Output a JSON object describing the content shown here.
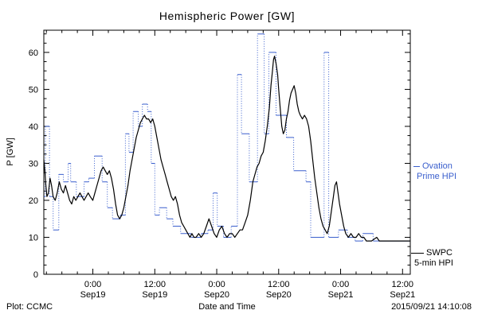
{
  "header": {
    "title": "Hemispheric Power [GW]"
  },
  "footer": {
    "plot_credit": "Plot: CCMC",
    "timestamp": "2015/09/21 14:10:08"
  },
  "legend": {
    "ovation": {
      "line1": "Ovation",
      "line2": "Prime HPI",
      "color": "#3a5fcd"
    },
    "swpc": {
      "line1": "SWPC",
      "line2": "5-min HPI",
      "color": "#000000"
    }
  },
  "chart_data": {
    "type": "line",
    "title": "Hemispheric Power [GW]",
    "xlabel": "Date and Time",
    "ylabel": "P [GW]",
    "x_unit": "hours since 2015-09-18 00:00 UT",
    "xlim": [
      14.5,
      85.5
    ],
    "ylim": [
      0,
      66
    ],
    "y_ticks": [
      0,
      10,
      20,
      30,
      40,
      50,
      60
    ],
    "y_minor_step": 2.5,
    "x_minor_step_hours": 3,
    "grid": false,
    "x_ticks": [
      {
        "t": 24,
        "time": "0:00",
        "date": "Sep19"
      },
      {
        "t": 36,
        "time": "12:00",
        "date": "Sep19"
      },
      {
        "t": 48,
        "time": "0:00",
        "date": "Sep20"
      },
      {
        "t": 60,
        "time": "12:00",
        "date": "Sep20"
      },
      {
        "t": 72,
        "time": "0:00",
        "date": "Sep21"
      },
      {
        "t": 84,
        "time": "12:00",
        "date": "Sep21"
      }
    ],
    "series": [
      {
        "name": "Ovation Prime HPI",
        "style": "step-dotted-verticals",
        "color": "#3a5fcd",
        "points": [
          [
            14.5,
            21
          ],
          [
            14.8,
            40
          ],
          [
            15.6,
            21
          ],
          [
            16.3,
            12
          ],
          [
            17.4,
            27
          ],
          [
            18.3,
            25
          ],
          [
            19.2,
            30
          ],
          [
            19.7,
            25
          ],
          [
            20.8,
            21
          ],
          [
            22.3,
            25
          ],
          [
            23.2,
            26
          ],
          [
            24.3,
            32
          ],
          [
            25.8,
            25
          ],
          [
            26.8,
            18
          ],
          [
            27.8,
            15
          ],
          [
            29.3,
            16
          ],
          [
            30.3,
            38
          ],
          [
            31.0,
            33
          ],
          [
            31.8,
            44
          ],
          [
            32.8,
            40
          ],
          [
            33.6,
            46
          ],
          [
            34.6,
            44
          ],
          [
            35.3,
            30
          ],
          [
            36.0,
            16
          ],
          [
            36.9,
            18
          ],
          [
            38.3,
            15
          ],
          [
            39.5,
            13
          ],
          [
            41.0,
            11
          ],
          [
            43.0,
            10
          ],
          [
            45.0,
            11
          ],
          [
            46.3,
            12
          ],
          [
            47.3,
            22
          ],
          [
            48.1,
            13
          ],
          [
            49.3,
            10
          ],
          [
            50.8,
            13
          ],
          [
            52.0,
            54
          ],
          [
            52.8,
            38
          ],
          [
            54.3,
            25
          ],
          [
            55.9,
            65
          ],
          [
            57.2,
            38
          ],
          [
            58.1,
            60
          ],
          [
            59.5,
            43
          ],
          [
            61.5,
            37
          ],
          [
            62.9,
            28
          ],
          [
            65.3,
            25
          ],
          [
            66.2,
            10
          ],
          [
            68.8,
            60
          ],
          [
            69.7,
            10
          ],
          [
            71.6,
            12
          ],
          [
            73.3,
            10
          ],
          [
            74.8,
            9
          ],
          [
            76.3,
            11
          ],
          [
            78.3,
            9
          ],
          [
            85.5,
            9
          ]
        ]
      },
      {
        "name": "SWPC 5-min HPI",
        "style": "solid-line",
        "color": "#000000",
        "points": [
          [
            14.5,
            31
          ],
          [
            14.7,
            28
          ],
          [
            14.9,
            24
          ],
          [
            15.1,
            21
          ],
          [
            15.4,
            22
          ],
          [
            15.7,
            26
          ],
          [
            16.0,
            24
          ],
          [
            16.3,
            21
          ],
          [
            16.7,
            20
          ],
          [
            17.1,
            22
          ],
          [
            17.5,
            25
          ],
          [
            17.9,
            23
          ],
          [
            18.3,
            22
          ],
          [
            18.7,
            24
          ],
          [
            19.1,
            22
          ],
          [
            19.5,
            20
          ],
          [
            19.9,
            19
          ],
          [
            20.3,
            21
          ],
          [
            20.7,
            20
          ],
          [
            21.1,
            21
          ],
          [
            21.5,
            22
          ],
          [
            21.9,
            21
          ],
          [
            22.3,
            20
          ],
          [
            22.7,
            21
          ],
          [
            23.1,
            22
          ],
          [
            23.5,
            21
          ],
          [
            24.0,
            20
          ],
          [
            24.4,
            22
          ],
          [
            24.8,
            24
          ],
          [
            25.2,
            26
          ],
          [
            25.6,
            28
          ],
          [
            26.0,
            29
          ],
          [
            26.4,
            28
          ],
          [
            26.8,
            27
          ],
          [
            27.2,
            28
          ],
          [
            27.6,
            26
          ],
          [
            28.0,
            23
          ],
          [
            28.4,
            19
          ],
          [
            28.8,
            16
          ],
          [
            29.2,
            15
          ],
          [
            29.6,
            16
          ],
          [
            30.0,
            18
          ],
          [
            30.4,
            21
          ],
          [
            30.8,
            24
          ],
          [
            31.2,
            28
          ],
          [
            31.6,
            31
          ],
          [
            32.0,
            34
          ],
          [
            32.4,
            37
          ],
          [
            32.8,
            39
          ],
          [
            33.2,
            41
          ],
          [
            33.6,
            42
          ],
          [
            34.0,
            43
          ],
          [
            34.4,
            42
          ],
          [
            34.8,
            42
          ],
          [
            35.2,
            41
          ],
          [
            35.6,
            42
          ],
          [
            36.0,
            40
          ],
          [
            36.4,
            37
          ],
          [
            36.8,
            34
          ],
          [
            37.2,
            31
          ],
          [
            37.6,
            29
          ],
          [
            38.0,
            27
          ],
          [
            38.4,
            25
          ],
          [
            38.8,
            23
          ],
          [
            39.2,
            21
          ],
          [
            39.6,
            20
          ],
          [
            40.0,
            21
          ],
          [
            40.4,
            19
          ],
          [
            40.8,
            16
          ],
          [
            41.2,
            14
          ],
          [
            41.6,
            13
          ],
          [
            42.0,
            12
          ],
          [
            42.4,
            11
          ],
          [
            42.8,
            10
          ],
          [
            43.2,
            11
          ],
          [
            43.6,
            10
          ],
          [
            44.0,
            10
          ],
          [
            44.5,
            11
          ],
          [
            45.0,
            10
          ],
          [
            45.5,
            11
          ],
          [
            46.0,
            13
          ],
          [
            46.5,
            15
          ],
          [
            47.0,
            13
          ],
          [
            47.5,
            11
          ],
          [
            48.0,
            10
          ],
          [
            48.5,
            12
          ],
          [
            49.0,
            13
          ],
          [
            49.5,
            11
          ],
          [
            50.0,
            10
          ],
          [
            50.5,
            11
          ],
          [
            51.0,
            11
          ],
          [
            51.5,
            10
          ],
          [
            52.0,
            11
          ],
          [
            52.5,
            12
          ],
          [
            53.0,
            12
          ],
          [
            53.5,
            14
          ],
          [
            54.0,
            16
          ],
          [
            54.5,
            20
          ],
          [
            55.0,
            25
          ],
          [
            55.4,
            27
          ],
          [
            55.8,
            29
          ],
          [
            56.2,
            30
          ],
          [
            56.6,
            32
          ],
          [
            57.0,
            33
          ],
          [
            57.4,
            36
          ],
          [
            57.8,
            40
          ],
          [
            58.2,
            45
          ],
          [
            58.5,
            51
          ],
          [
            58.8,
            55
          ],
          [
            59.0,
            58
          ],
          [
            59.2,
            59
          ],
          [
            59.5,
            57
          ],
          [
            59.8,
            54
          ],
          [
            60.0,
            50
          ],
          [
            60.3,
            45
          ],
          [
            60.6,
            40
          ],
          [
            60.9,
            38
          ],
          [
            61.2,
            39
          ],
          [
            61.5,
            42
          ],
          [
            61.8,
            44
          ],
          [
            62.1,
            47
          ],
          [
            62.4,
            49
          ],
          [
            62.7,
            50
          ],
          [
            63.0,
            51
          ],
          [
            63.3,
            49
          ],
          [
            63.6,
            46
          ],
          [
            63.9,
            44
          ],
          [
            64.2,
            43
          ],
          [
            64.6,
            42
          ],
          [
            65.0,
            43
          ],
          [
            65.4,
            42
          ],
          [
            65.8,
            40
          ],
          [
            66.2,
            36
          ],
          [
            66.6,
            31
          ],
          [
            67.0,
            26
          ],
          [
            67.4,
            22
          ],
          [
            67.8,
            18
          ],
          [
            68.2,
            15
          ],
          [
            68.6,
            13
          ],
          [
            69.0,
            12
          ],
          [
            69.4,
            11
          ],
          [
            69.8,
            13
          ],
          [
            70.2,
            17
          ],
          [
            70.6,
            21
          ],
          [
            70.9,
            24
          ],
          [
            71.2,
            25
          ],
          [
            71.5,
            22
          ],
          [
            71.8,
            19
          ],
          [
            72.2,
            16
          ],
          [
            72.6,
            13
          ],
          [
            73.0,
            11
          ],
          [
            73.5,
            10
          ],
          [
            74.0,
            11
          ],
          [
            74.5,
            10
          ],
          [
            75.0,
            10
          ],
          [
            75.5,
            11
          ],
          [
            76.0,
            10
          ],
          [
            76.5,
            10
          ],
          [
            77.0,
            9
          ],
          [
            78.0,
            9
          ],
          [
            79.0,
            10
          ],
          [
            79.5,
            9
          ],
          [
            80.5,
            9
          ],
          [
            81.5,
            9
          ],
          [
            82.5,
            9
          ],
          [
            83.5,
            9
          ],
          [
            84.5,
            9
          ],
          [
            85.5,
            9
          ]
        ]
      }
    ]
  }
}
